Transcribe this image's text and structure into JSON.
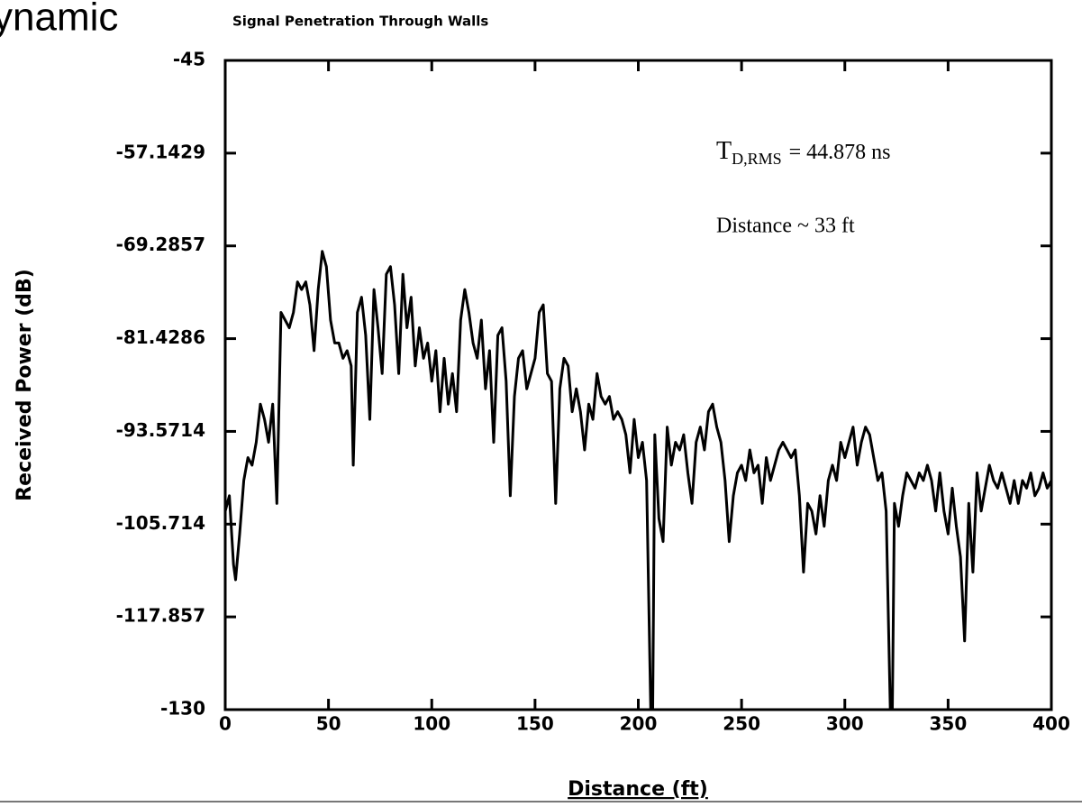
{
  "slide_title": "ynamic",
  "chart_data": {
    "type": "line",
    "title": "Signal Penetration Through Walls",
    "xlabel": "Distance (ft)",
    "ylabel": "Received Power (dB)",
    "annotations": [
      {
        "symbol": "T",
        "subscript": "D,RMS",
        "text": "= 44.878 ns"
      },
      "Distance ~ 33 ft"
    ],
    "xlim": [
      0,
      400
    ],
    "xticks": [
      0,
      50,
      100,
      150,
      200,
      250,
      300,
      350,
      400
    ],
    "ylim": [
      -130,
      -45
    ],
    "yticks": [
      -45,
      -57.1429,
      -69.2857,
      -81.4286,
      -93.5714,
      -105.714,
      -117.857,
      -130
    ],
    "series": [
      {
        "color": "#000000",
        "x": [
          0,
          2,
          4,
          5,
          7,
          9,
          11,
          13,
          15,
          17,
          19,
          21,
          23,
          25,
          27,
          29,
          31,
          33,
          35,
          37,
          39,
          41,
          43,
          45,
          47,
          49,
          51,
          53,
          55,
          57,
          59,
          61,
          62,
          64,
          66,
          68,
          70,
          72,
          74,
          76,
          78,
          80,
          82,
          84,
          86,
          88,
          90,
          92,
          94,
          96,
          98,
          100,
          102,
          104,
          106,
          108,
          110,
          112,
          114,
          116,
          118,
          120,
          122,
          124,
          126,
          128,
          130,
          132,
          134,
          136,
          138,
          140,
          142,
          144,
          146,
          148,
          150,
          152,
          154,
          156,
          158,
          160,
          162,
          164,
          166,
          168,
          170,
          172,
          174,
          176,
          178,
          180,
          182,
          184,
          186,
          188,
          190,
          192,
          194,
          196,
          198,
          200,
          202,
          204,
          206,
          207,
          208,
          210,
          212,
          214,
          216,
          218,
          220,
          222,
          224,
          226,
          228,
          230,
          232,
          234,
          236,
          238,
          240,
          242,
          244,
          246,
          248,
          250,
          252,
          254,
          256,
          258,
          260,
          262,
          264,
          266,
          268,
          270,
          272,
          274,
          276,
          278,
          280,
          282,
          284,
          286,
          288,
          290,
          292,
          294,
          296,
          298,
          300,
          302,
          304,
          306,
          308,
          310,
          312,
          314,
          316,
          318,
          320,
          322,
          323,
          324,
          326,
          328,
          330,
          332,
          334,
          336,
          338,
          340,
          342,
          344,
          346,
          348,
          350,
          352,
          354,
          356,
          358,
          360,
          362,
          364,
          366,
          368,
          370,
          372,
          374,
          376,
          378,
          380,
          382,
          384,
          386,
          388,
          390,
          392,
          394,
          396,
          398,
          400
        ],
        "values": [
          -104,
          -102,
          -111,
          -113,
          -107,
          -100,
          -97,
          -98,
          -95,
          -90,
          -92,
          -95,
          -90,
          -103,
          -78,
          -79,
          -80,
          -78,
          -74,
          -75,
          -74,
          -77,
          -83,
          -75,
          -70,
          -72,
          -79,
          -82,
          -82,
          -84,
          -83,
          -85,
          -98,
          -78,
          -76,
          -81,
          -92,
          -75,
          -80,
          -86,
          -73,
          -72,
          -77,
          -86,
          -73,
          -80,
          -76,
          -85,
          -80,
          -84,
          -82,
          -87,
          -83,
          -91,
          -84,
          -90,
          -86,
          -91,
          -79,
          -75,
          -78,
          -82,
          -84,
          -79,
          -88,
          -83,
          -95,
          -81,
          -80,
          -87,
          -102,
          -89,
          -84,
          -83,
          -88,
          -86,
          -84,
          -78,
          -77,
          -86,
          -87,
          -103,
          -88,
          -84,
          -85,
          -91,
          -88,
          -91,
          -96,
          -90,
          -92,
          -86,
          -89,
          -90,
          -89,
          -92,
          -91,
          -92,
          -94,
          -99,
          -92,
          -97,
          -95,
          -100,
          -130,
          -130,
          -94,
          -105,
          -108,
          -93,
          -98,
          -95,
          -96,
          -94,
          -99,
          -103,
          -95,
          -93,
          -96,
          -91,
          -90,
          -93,
          -95,
          -100,
          -108,
          -102,
          -99,
          -98,
          -100,
          -96,
          -99,
          -98,
          -103,
          -97,
          -100,
          -98,
          -96,
          -95,
          -96,
          -97,
          -96,
          -102,
          -112,
          -103,
          -104,
          -107,
          -102,
          -106,
          -100,
          -98,
          -100,
          -95,
          -97,
          -95,
          -93,
          -98,
          -95,
          -93,
          -94,
          -97,
          -100,
          -99,
          -104,
          -130,
          -130,
          -103,
          -106,
          -102,
          -99,
          -100,
          -101,
          -99,
          -100,
          -98,
          -100,
          -104,
          -99,
          -104,
          -107,
          -101,
          -106,
          -110,
          -121,
          -103,
          -112,
          -99,
          -104,
          -101,
          -98,
          -100,
          -101,
          -99,
          -101,
          -103,
          -100,
          -103,
          -100,
          -101,
          -99,
          -102,
          -101,
          -99,
          -101,
          -100
        ]
      }
    ]
  }
}
